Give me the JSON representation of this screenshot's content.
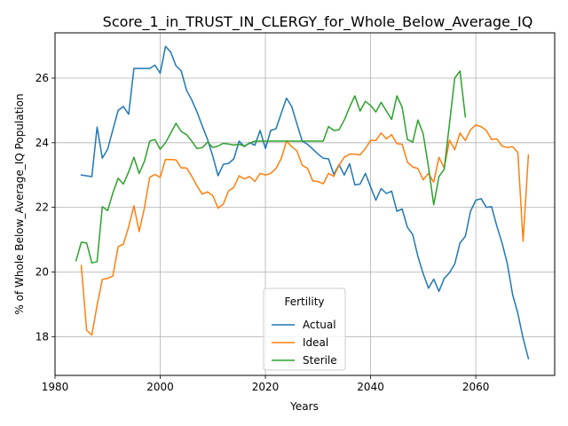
{
  "chart_data": {
    "type": "line",
    "title": "Score_1_in_TRUST_IN_CLERGY_for_Whole_Below_Average_IQ",
    "xlabel": "Years",
    "ylabel": "% of Whole Below_Average_IQ Population",
    "xlim": [
      1980,
      2075
    ],
    "ylim": [
      16.8,
      27.4
    ],
    "xticks": [
      1980,
      2000,
      2020,
      2040,
      2060
    ],
    "yticks": [
      18,
      20,
      22,
      24,
      26
    ],
    "grid": true,
    "legend": {
      "title": "Fertility",
      "placement": "lower-center"
    },
    "series": [
      {
        "name": "Actual",
        "color": "#1f77b4",
        "x": [
          1985,
          1987,
          1988,
          1989,
          1990,
          1991,
          1992,
          1993,
          1994,
          1995,
          1996,
          1997,
          1998,
          1999,
          2000,
          2001,
          2002,
          2003,
          2004,
          2005,
          2006,
          2007,
          2008,
          2009,
          2010,
          2011,
          2012,
          2013,
          2014,
          2015,
          2016,
          2017,
          2018,
          2019,
          2020,
          2021,
          2022,
          2023,
          2024,
          2025,
          2026,
          2027,
          2028,
          2029,
          2030,
          2031,
          2032,
          2033,
          2034,
          2035,
          2036,
          2037,
          2038,
          2039,
          2040,
          2041,
          2042,
          2043,
          2044,
          2045,
          2046,
          2047,
          2048,
          2049,
          2050,
          2051,
          2052,
          2053,
          2054,
          2055,
          2056,
          2057,
          2058,
          2059,
          2060,
          2061,
          2062,
          2063,
          2064,
          2065,
          2066,
          2067,
          2068,
          2069,
          2070
        ],
        "y": [
          23.0,
          22.95,
          24.48,
          23.52,
          23.8,
          24.4,
          25.0,
          25.12,
          24.88,
          26.3,
          26.3,
          26.3,
          26.3,
          26.4,
          26.15,
          26.98,
          26.8,
          26.38,
          26.22,
          25.62,
          25.32,
          24.95,
          24.52,
          24.1,
          23.58,
          22.98,
          23.33,
          23.36,
          23.5,
          24.05,
          23.88,
          24.0,
          23.92,
          24.38,
          23.82,
          24.38,
          24.43,
          24.9,
          25.38,
          25.12,
          24.58,
          24.05,
          23.95,
          23.8,
          23.65,
          23.52,
          23.5,
          23.02,
          23.32,
          23.0,
          23.35,
          22.7,
          22.72,
          23.05,
          22.63,
          22.22,
          22.58,
          22.43,
          22.5,
          21.88,
          21.95,
          21.38,
          21.16,
          20.48,
          19.95,
          19.5,
          19.78,
          19.4,
          19.8,
          19.98,
          20.25,
          20.9,
          21.1,
          21.88,
          22.22,
          22.27,
          22.0,
          22.02,
          21.42,
          20.9,
          20.25,
          19.3,
          18.72,
          17.95,
          17.32
        ]
      },
      {
        "name": "Ideal",
        "color": "#ff7f0e",
        "x": [
          1985,
          1986,
          1987,
          1988,
          1989,
          1990,
          1991,
          1992,
          1993,
          1994,
          1995,
          1996,
          1997,
          1998,
          1999,
          2000,
          2001,
          2002,
          2003,
          2004,
          2005,
          2006,
          2007,
          2008,
          2009,
          2010,
          2011,
          2012,
          2013,
          2014,
          2015,
          2016,
          2017,
          2018,
          2019,
          2020,
          2021,
          2022,
          2023,
          2024,
          2025,
          2026,
          2027,
          2028,
          2029,
          2030,
          2031,
          2032,
          2033,
          2034,
          2035,
          2036,
          2037,
          2038,
          2039,
          2040,
          2041,
          2042,
          2043,
          2044,
          2045,
          2046,
          2047,
          2048,
          2049,
          2050,
          2051,
          2052,
          2053,
          2054,
          2055,
          2056,
          2057,
          2058,
          2059,
          2060,
          2061,
          2062,
          2063,
          2064,
          2065,
          2066,
          2067,
          2068,
          2069,
          2070
        ],
        "y": [
          20.2,
          18.2,
          18.05,
          18.97,
          19.77,
          19.8,
          19.88,
          20.78,
          20.86,
          21.4,
          22.05,
          21.25,
          21.98,
          22.93,
          23.02,
          22.93,
          23.48,
          23.48,
          23.47,
          23.22,
          23.22,
          22.96,
          22.66,
          22.41,
          22.48,
          22.36,
          21.98,
          22.1,
          22.51,
          22.62,
          22.98,
          22.88,
          22.95,
          22.8,
          23.05,
          23.0,
          23.05,
          23.2,
          23.5,
          24.05,
          23.88,
          23.75,
          23.3,
          23.21,
          22.82,
          22.8,
          22.73,
          23.05,
          22.96,
          23.3,
          23.55,
          23.65,
          23.65,
          23.62,
          23.82,
          24.07,
          24.07,
          24.3,
          24.12,
          24.25,
          23.97,
          23.95,
          23.4,
          23.25,
          23.2,
          22.85,
          23.05,
          22.78,
          23.55,
          23.22,
          24.08,
          23.78,
          24.3,
          24.07,
          24.4,
          24.55,
          24.5,
          24.38,
          24.1,
          24.12,
          23.9,
          23.85,
          23.88,
          23.7,
          20.95,
          23.62
        ]
      },
      {
        "name": "Sterile",
        "color": "#2ca02c",
        "x": [
          1984,
          1985,
          1986,
          1987,
          1988,
          1989,
          1990,
          1991,
          1992,
          1993,
          1994,
          1995,
          1996,
          1997,
          1998,
          1999,
          2000,
          2001,
          2002,
          2003,
          2004,
          2005,
          2006,
          2007,
          2008,
          2009,
          2010,
          2011,
          2012,
          2013,
          2014,
          2015,
          2016,
          2017,
          2018,
          2019,
          2020,
          2021,
          2022,
          2023,
          2024,
          2025,
          2026,
          2027,
          2028,
          2029,
          2030,
          2031,
          2032,
          2033,
          2034,
          2035,
          2036,
          2037,
          2038,
          2039,
          2040,
          2041,
          2042,
          2043,
          2044,
          2045,
          2046,
          2047,
          2048,
          2049,
          2050,
          2051,
          2052,
          2053,
          2054,
          2055,
          2056,
          2057,
          2058
        ],
        "y": [
          20.35,
          20.92,
          20.9,
          20.28,
          20.32,
          22.02,
          21.9,
          22.45,
          22.9,
          22.72,
          23.1,
          23.55,
          23.05,
          23.42,
          24.05,
          24.1,
          23.8,
          24.0,
          24.3,
          24.6,
          24.35,
          24.25,
          24.05,
          23.82,
          23.85,
          24.02,
          23.85,
          23.9,
          23.98,
          23.96,
          23.93,
          23.95,
          23.9,
          23.98,
          24.05,
          24.05,
          24.05,
          24.05,
          24.05,
          24.05,
          24.05,
          24.05,
          24.05,
          24.05,
          24.05,
          24.05,
          24.05,
          24.05,
          24.5,
          24.38,
          24.4,
          24.7,
          25.1,
          25.45,
          24.98,
          25.28,
          25.15,
          24.95,
          25.25,
          24.98,
          24.72,
          25.45,
          25.1,
          24.1,
          24.02,
          24.7,
          24.28,
          23.25,
          22.08,
          22.95,
          23.18,
          24.6,
          26.0,
          26.22,
          24.8
        ]
      }
    ]
  }
}
